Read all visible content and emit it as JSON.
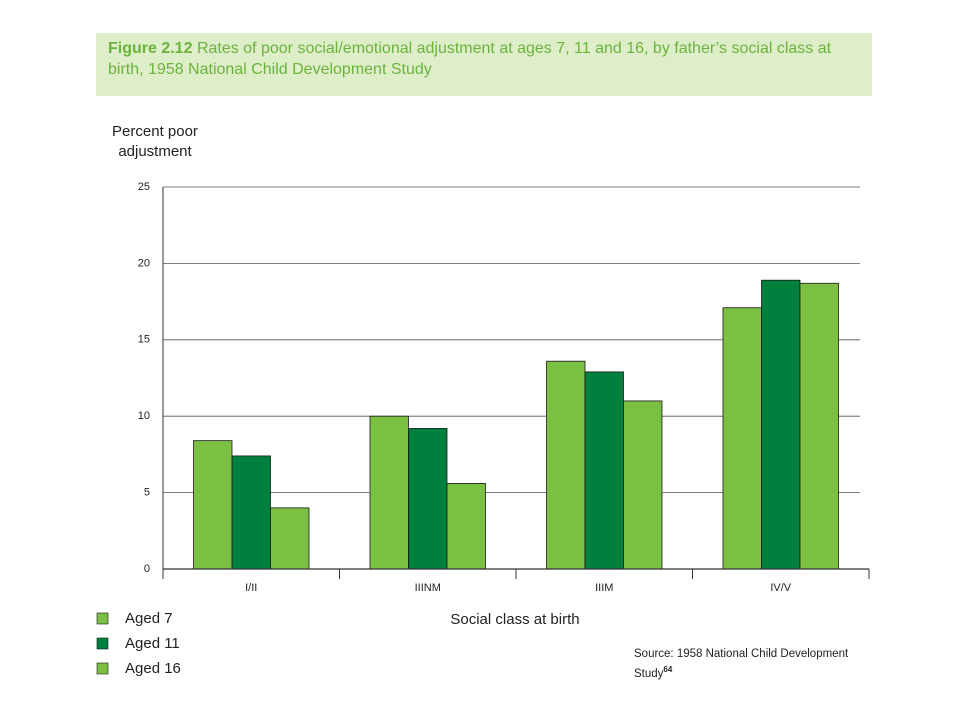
{
  "chart_data": {
    "type": "bar",
    "figure_label": "Figure 2.12",
    "title": "Rates of poor social/emotional adjustment at ages 7, 11 and 16, by father’s social class at birth, 1958 National Child Development Study",
    "y_label": "Percent poor adjustment",
    "x_label": "Social class at birth",
    "categories": [
      "I/II",
      "IIINM",
      "IIIM",
      "IV/V"
    ],
    "series": [
      {
        "name": "Aged 7",
        "color": "#7cc043",
        "values": [
          8.4,
          10.0,
          13.6,
          17.1
        ]
      },
      {
        "name": "Aged 11",
        "color": "#00803d",
        "values": [
          7.4,
          9.2,
          12.9,
          18.9
        ]
      },
      {
        "name": "Aged 16",
        "color": "#7cc043",
        "values": [
          4.0,
          5.6,
          11.0,
          18.7
        ]
      }
    ],
    "ylim": [
      0,
      25
    ],
    "yticks": [
      0,
      5,
      10,
      15,
      20,
      25
    ],
    "grid": true,
    "legend": "bottom-left",
    "source": "Source: 1958 National Child Development Study",
    "source_ref": "64"
  }
}
